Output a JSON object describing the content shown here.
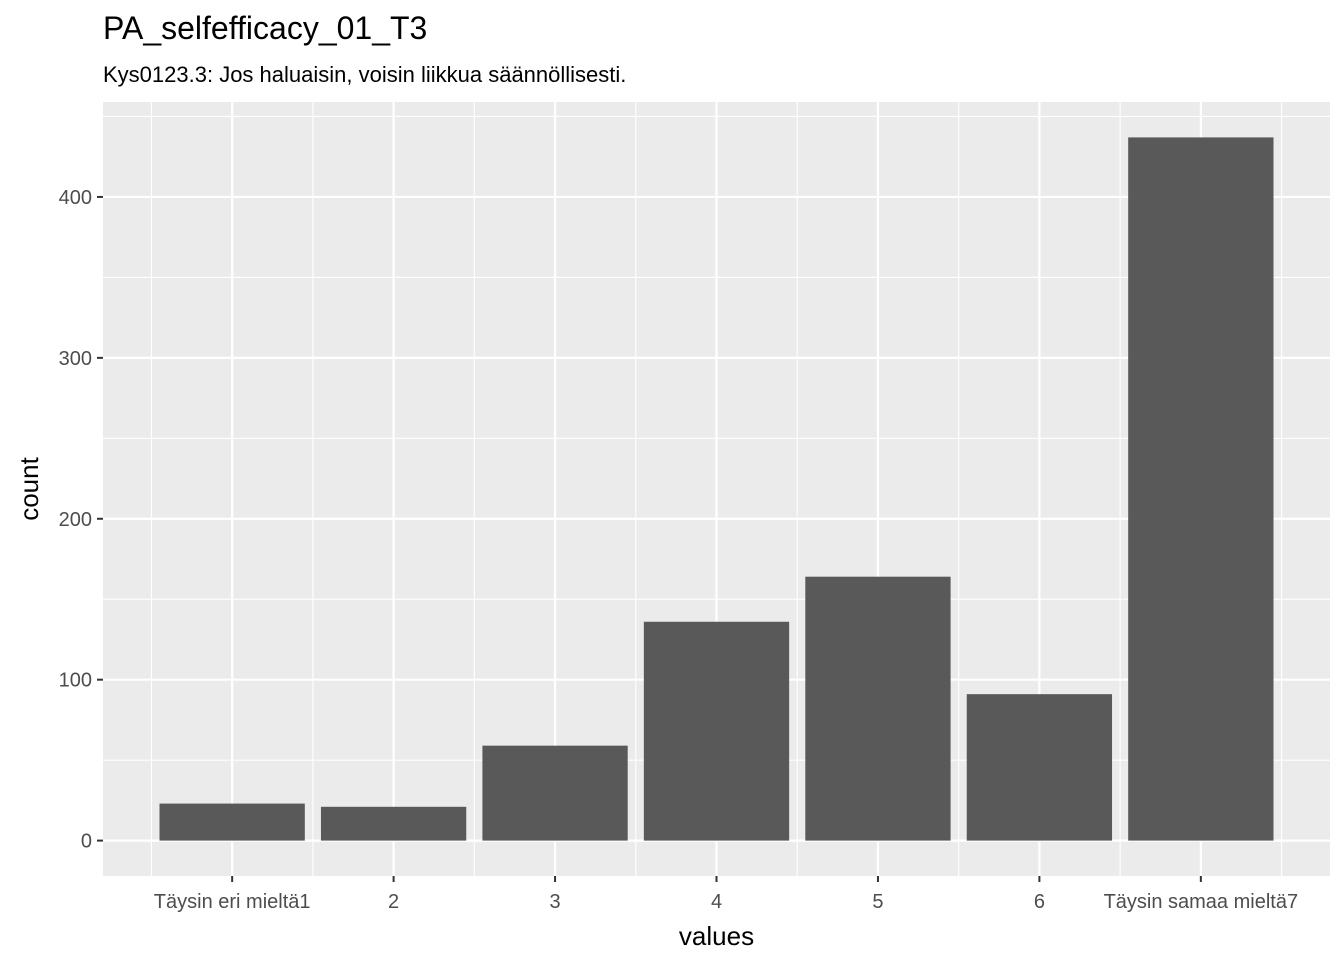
{
  "chart_data": {
    "type": "bar",
    "title": "PA_selfefficacy_01_T3",
    "subtitle": "Kys0123.3: Jos haluaisin, voisin liikkua säännöllisesti.",
    "xlabel": "values",
    "ylabel": "count",
    "categories": [
      "Täysin eri mieltä1",
      "2",
      "3",
      "4",
      "5",
      "6",
      "Täysin samaa mieltä7"
    ],
    "values": [
      23,
      21,
      59,
      136,
      164,
      91,
      437
    ],
    "ylim": [
      -22,
      459
    ],
    "yticks": [
      0,
      100,
      200,
      300,
      400
    ],
    "grid": true,
    "legend": "none",
    "colors": {
      "panel_background": "#ebebeb",
      "grid_major": "#ffffff",
      "bar_fill": "#595959",
      "tick_text": "#4d4d4d"
    }
  }
}
